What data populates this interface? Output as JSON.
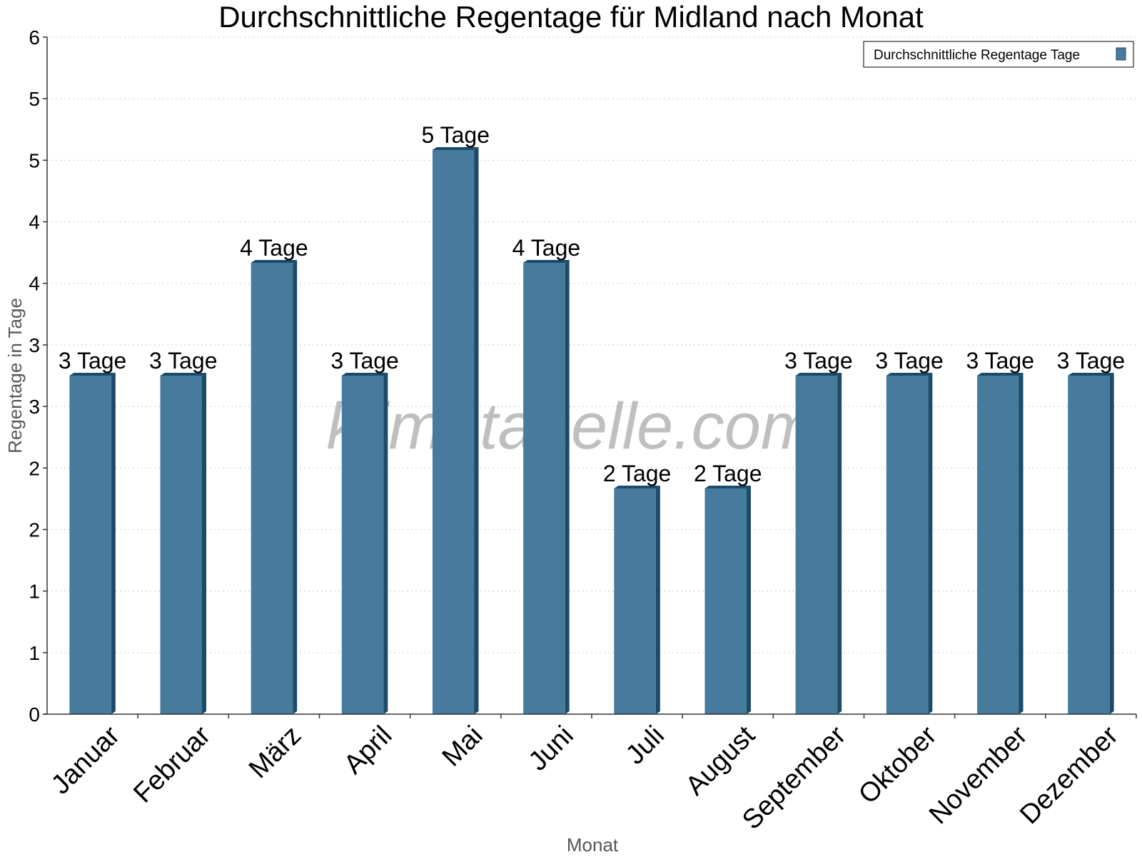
{
  "chart_data": {
    "type": "bar",
    "title": "Durchschnittliche Regentage für Midland nach Monat",
    "xlabel": "Monat",
    "ylabel": "Regentage in Tage",
    "categories": [
      "Januar",
      "Februar",
      "März",
      "April",
      "Mai",
      "Juni",
      "Juli",
      "August",
      "September",
      "Oktober",
      "November",
      "Dezember"
    ],
    "series": [
      {
        "name": "Durchschnittliche Regentage Tage",
        "values": [
          3,
          3,
          4,
          3,
          5,
          4,
          2,
          2,
          3,
          3,
          3,
          3
        ],
        "color": "#467b9d",
        "side_color": "#1b4a6b"
      }
    ],
    "data_labels": [
      "3 Tage",
      "3 Tage",
      "4 Tage",
      "3 Tage",
      "5 Tage",
      "4 Tage",
      "2 Tage",
      "2 Tage",
      "3 Tage",
      "3 Tage",
      "3 Tage",
      "3 Tage"
    ],
    "yticks": [
      "0",
      "1",
      "1",
      "2",
      "2",
      "3",
      "3",
      "4",
      "4",
      "5",
      "5",
      "6"
    ],
    "ylim": [
      0,
      5.5
    ],
    "grid": true,
    "legend": "top-right"
  },
  "watermark": "klimatabelle.com"
}
